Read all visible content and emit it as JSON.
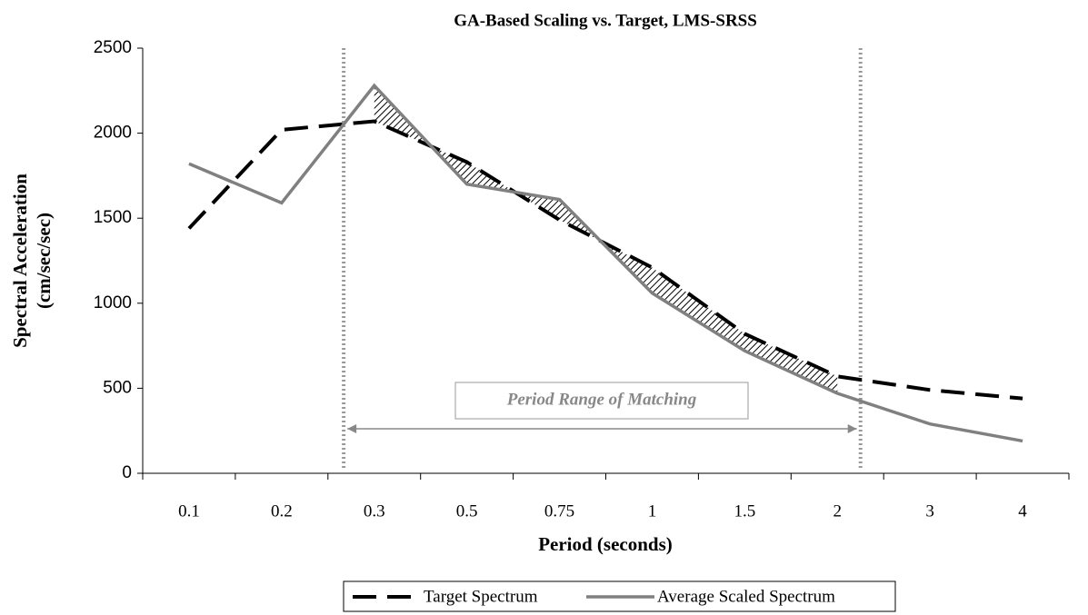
{
  "chart_data": {
    "type": "line",
    "title": "GA-Based Scaling vs. Target, LMS-SRSS",
    "xlabel": "Period (seconds)",
    "ylabel": [
      "Spectral Acceleration",
      "(cm/sec/sec)"
    ],
    "annotation": "Period Range of Matching",
    "categories": [
      "0.1",
      "0.2",
      "0.3",
      "0.5",
      "0.75",
      "1",
      "1.5",
      "2",
      "3",
      "4"
    ],
    "series": [
      {
        "name": "Target Spectrum",
        "color": "#000000",
        "values": [
          1440,
          2020,
          2070,
          1830,
          1490,
          1210,
          820,
          570,
          490,
          440
        ]
      },
      {
        "name": "Average Scaled Spectrum",
        "color": "#808080",
        "values": [
          1820,
          1590,
          2280,
          1700,
          1610,
          1060,
          720,
          470,
          290,
          190
        ]
      }
    ],
    "ylim": [
      0,
      2500
    ],
    "yticks": [
      0,
      500,
      1000,
      1500,
      2000,
      2500
    ],
    "grid": false,
    "legend": "bottom"
  }
}
